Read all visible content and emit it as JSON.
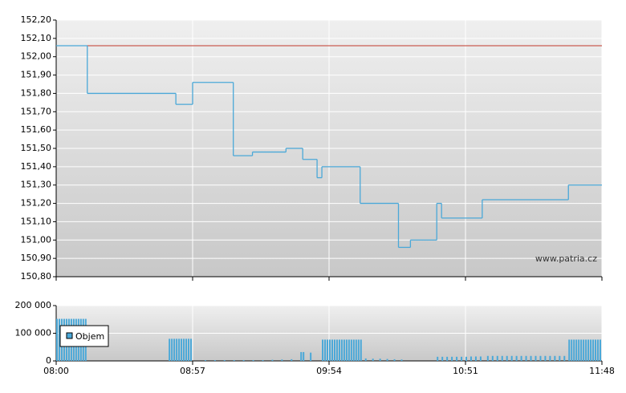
{
  "chart_data": [
    {
      "type": "line",
      "step": true,
      "color": "#4aa8d8",
      "x": [
        "08:00",
        "08:13",
        "08:50",
        "08:57",
        "09:14",
        "09:22",
        "09:36",
        "09:43",
        "09:49",
        "09:51",
        "10:07",
        "10:23",
        "10:28",
        "10:39",
        "10:41",
        "10:58",
        "11:34",
        "11:48"
      ],
      "values": [
        152.06,
        151.8,
        151.74,
        151.86,
        151.46,
        151.48,
        151.5,
        151.44,
        151.34,
        151.4,
        151.2,
        150.96,
        151.0,
        151.2,
        151.12,
        151.22,
        151.3,
        151.3
      ],
      "reference_line": 152.06,
      "reference_color": "#c0392b",
      "xlim": [
        "08:00",
        "11:48"
      ],
      "xticks": [
        "08:00",
        "08:57",
        "09:54",
        "10:51",
        "11:48"
      ],
      "ylim": [
        150.8,
        152.2
      ],
      "yticks": [
        {
          "value": 150.8,
          "label": "150,80"
        },
        {
          "value": 150.9,
          "label": "150,90"
        },
        {
          "value": 151.0,
          "label": "151,00"
        },
        {
          "value": 151.1,
          "label": "151,10"
        },
        {
          "value": 151.2,
          "label": "151,20"
        },
        {
          "value": 151.3,
          "label": "151,30"
        },
        {
          "value": 151.4,
          "label": "151,40"
        },
        {
          "value": 151.5,
          "label": "151,50"
        },
        {
          "value": 151.6,
          "label": "151,60"
        },
        {
          "value": 151.7,
          "label": "151,70"
        },
        {
          "value": 151.8,
          "label": "151,80"
        },
        {
          "value": 151.9,
          "label": "151,90"
        },
        {
          "value": 152.0,
          "label": "152,00"
        },
        {
          "value": 152.1,
          "label": "152,10"
        },
        {
          "value": 152.2,
          "label": "152,20"
        }
      ],
      "grid": true,
      "annotation": "www.patria.cz"
    },
    {
      "type": "bar",
      "x": [
        "08:00",
        "08:01",
        "08:02",
        "08:03",
        "08:04",
        "08:05",
        "08:06",
        "08:07",
        "08:08",
        "08:09",
        "08:10",
        "08:11",
        "08:12",
        "08:47",
        "08:48",
        "08:49",
        "08:50",
        "08:51",
        "08:52",
        "08:53",
        "08:54",
        "08:55",
        "08:56",
        "09:02",
        "09:06",
        "09:10",
        "09:14",
        "09:18",
        "09:22",
        "09:26",
        "09:30",
        "09:34",
        "09:38",
        "09:42",
        "09:43",
        "09:46",
        "09:51",
        "09:52",
        "09:53",
        "09:54",
        "09:55",
        "09:56",
        "09:57",
        "09:58",
        "09:59",
        "10:00",
        "10:01",
        "10:02",
        "10:03",
        "10:04",
        "10:05",
        "10:06",
        "10:07",
        "10:09",
        "10:12",
        "10:15",
        "10:18",
        "10:21",
        "10:24",
        "10:39",
        "10:41",
        "10:43",
        "10:45",
        "10:47",
        "10:49",
        "10:51",
        "10:53",
        "10:55",
        "10:57",
        "11:00",
        "11:02",
        "11:04",
        "11:06",
        "11:08",
        "11:10",
        "11:12",
        "11:14",
        "11:16",
        "11:18",
        "11:20",
        "11:22",
        "11:24",
        "11:26",
        "11:28",
        "11:30",
        "11:32",
        "11:34",
        "11:35",
        "11:36",
        "11:37",
        "11:38",
        "11:39",
        "11:40",
        "11:41",
        "11:42",
        "11:43",
        "11:44",
        "11:45",
        "11:46",
        "11:47"
      ],
      "series": [
        {
          "name": "Objem",
          "color": "#4aa8d8",
          "values": [
            152000,
            152000,
            152000,
            152000,
            152000,
            152000,
            152000,
            152000,
            152000,
            152000,
            152000,
            152000,
            152000,
            80000,
            80000,
            80000,
            80000,
            80000,
            80000,
            80000,
            80000,
            80000,
            80000,
            3000,
            3000,
            3000,
            3000,
            3000,
            3000,
            3000,
            4000,
            5000,
            6000,
            32000,
            32000,
            30000,
            77000,
            77000,
            77000,
            77000,
            77000,
            77000,
            77000,
            77000,
            77000,
            77000,
            77000,
            77000,
            77000,
            77000,
            77000,
            77000,
            77000,
            9000,
            8000,
            8000,
            7000,
            6000,
            5000,
            15000,
            15000,
            15000,
            15000,
            15000,
            15000,
            15000,
            16000,
            16000,
            16000,
            18000,
            18000,
            18000,
            18000,
            18000,
            18000,
            18000,
            18000,
            18000,
            18000,
            18000,
            18000,
            18000,
            18000,
            18000,
            18000,
            18000,
            77000,
            77000,
            77000,
            77000,
            77000,
            77000,
            77000,
            77000,
            77000,
            77000,
            77000,
            77000,
            77000,
            77000
          ]
        }
      ],
      "xlim": [
        "08:00",
        "11:48"
      ],
      "xticks": [
        "08:00",
        "08:57",
        "09:54",
        "10:51",
        "11:48"
      ],
      "ylim": [
        0,
        200000
      ],
      "yticks": [
        0,
        {
          "value": 100000,
          "label": "100 000"
        },
        {
          "value": 200000,
          "label": "200 000"
        }
      ],
      "grid": true
    }
  ]
}
